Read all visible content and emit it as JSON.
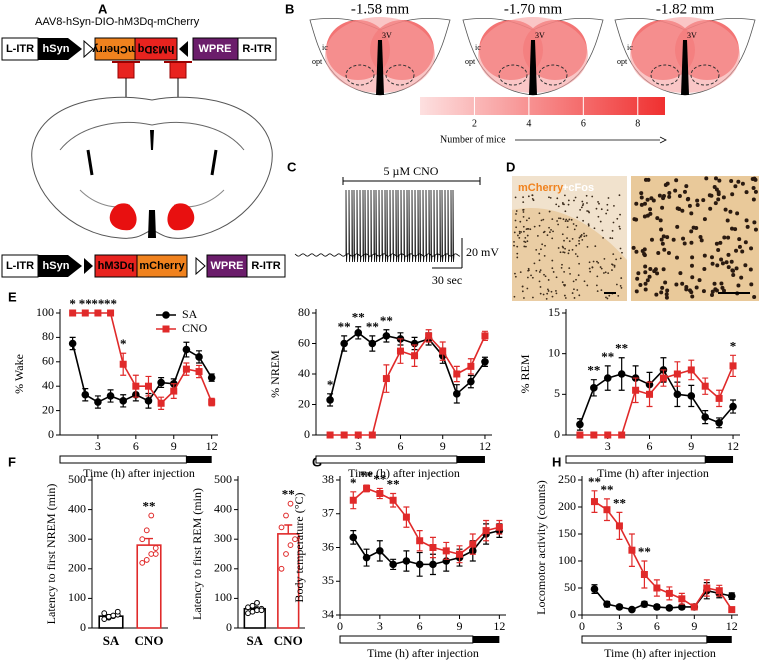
{
  "panel_labels": [
    "A",
    "B",
    "C",
    "D",
    "E",
    "F",
    "G",
    "H"
  ],
  "panel_a": {
    "vector": "AAV8-hSyn-DIO-hM3Dq-mCherry",
    "top_construct": [
      "L-ITR",
      "hSyn",
      "mCherry",
      "hM3Dq",
      "WPRE",
      "R-ITR"
    ],
    "bottom_construct": [
      "L-ITR",
      "hSyn",
      "hM3Dq",
      "mCherry",
      "WPRE",
      "R-ITR"
    ]
  },
  "panel_b": {
    "sections": [
      "-1.58 mm",
      "-1.70 mm",
      "-1.82 mm"
    ],
    "region_labels": [
      "ic",
      "3V",
      "opt"
    ],
    "colorbar_ticks": [
      2,
      4,
      6,
      8
    ],
    "colorbar_label": "Number of mice"
  },
  "panel_c": {
    "drug": "5 µM CNO",
    "scale_y": "20 mV",
    "scale_x": "30 sec"
  },
  "panel_d": {
    "stain_1": "mCherry",
    "stain_2": "+cFos"
  },
  "chart_data": [
    {
      "type": "line",
      "ylabel": "% Wake",
      "xlabel": "Time (h) after injection",
      "legend": "upper right",
      "x": [
        1,
        2,
        3,
        4,
        5,
        6,
        7,
        8,
        9,
        10,
        11,
        12
      ],
      "xlim": [
        0,
        12.5
      ],
      "xticks": [
        3,
        6,
        9,
        12
      ],
      "ylim": [
        0,
        100
      ],
      "yticks": [
        0,
        20,
        40,
        60,
        80,
        100
      ],
      "dark_period": [
        10,
        12
      ],
      "series": [
        {
          "name": "SA",
          "color": "#000000",
          "marker": "circle",
          "values": [
            75,
            33,
            27,
            32,
            28,
            33,
            28,
            43,
            42,
            70,
            64,
            47
          ],
          "errors": [
            5,
            5,
            5,
            5,
            5,
            5,
            6,
            4,
            4,
            6,
            5,
            3
          ]
        },
        {
          "name": "CNO",
          "color": "#e02a2a",
          "marker": "square",
          "values": [
            100,
            100,
            100,
            100,
            58,
            40,
            40,
            26,
            36,
            54,
            52,
            27
          ],
          "errors": [
            0,
            0,
            0,
            0,
            9,
            9,
            8,
            5,
            6,
            5,
            5,
            3
          ]
        }
      ],
      "annotations": [
        {
          "x": 1,
          "text": "*"
        },
        {
          "x": 2,
          "text": "**"
        },
        {
          "x": 3,
          "text": "**"
        },
        {
          "x": 4,
          "text": "**"
        },
        {
          "x": 5,
          "text": "*"
        }
      ]
    },
    {
      "type": "line",
      "ylabel": "% NREM",
      "xlabel": "Time (h) after injection",
      "x": [
        1,
        2,
        3,
        4,
        5,
        6,
        7,
        8,
        9,
        10,
        11,
        12
      ],
      "xlim": [
        0,
        12.5
      ],
      "xticks": [
        3,
        6,
        9,
        12
      ],
      "ylim": [
        0,
        80
      ],
      "yticks": [
        0,
        20,
        40,
        60,
        80
      ],
      "dark_period": [
        10,
        12
      ],
      "series": [
        {
          "color": "#000000",
          "marker": "circle",
          "values": [
            23,
            60,
            67,
            60,
            65,
            63,
            60,
            63,
            52,
            27,
            35,
            48
          ],
          "errors": [
            4,
            5,
            4,
            5,
            4,
            4,
            4,
            4,
            5,
            6,
            4,
            3
          ]
        },
        {
          "color": "#e02a2a",
          "marker": "square",
          "values": [
            0,
            0,
            0,
            0,
            37,
            55,
            52,
            65,
            55,
            40,
            45,
            65
          ],
          "errors": [
            0,
            0,
            0,
            0,
            9,
            8,
            7,
            4,
            6,
            5,
            5,
            3
          ]
        }
      ],
      "annotations": [
        {
          "x": 1,
          "text": "*"
        },
        {
          "x": 2,
          "text": "**"
        },
        {
          "x": 3,
          "text": "**"
        },
        {
          "x": 4,
          "text": "**"
        },
        {
          "x": 5,
          "text": "**"
        }
      ]
    },
    {
      "type": "line",
      "ylabel": "% REM",
      "xlabel": "Time (h) after injection",
      "x": [
        1,
        2,
        3,
        4,
        5,
        6,
        7,
        8,
        9,
        10,
        11,
        12
      ],
      "xlim": [
        0,
        12.5
      ],
      "xticks": [
        3,
        6,
        9,
        12
      ],
      "ylim": [
        0,
        15
      ],
      "yticks": [
        0,
        5,
        10,
        15
      ],
      "dark_period": [
        10,
        12
      ],
      "series": [
        {
          "color": "#000000",
          "marker": "circle",
          "values": [
            1.3,
            5.8,
            7,
            7.5,
            7,
            6.2,
            8,
            5,
            4.8,
            2.2,
            1.5,
            3.5
          ],
          "errors": [
            0.7,
            1,
            1.5,
            2,
            1.5,
            1.5,
            1.5,
            1.5,
            1.3,
            0.8,
            0.6,
            0.8
          ]
        },
        {
          "color": "#e02a2a",
          "marker": "square",
          "values": [
            0,
            0,
            0,
            0,
            5.5,
            5,
            7,
            7.5,
            8,
            6,
            4.5,
            8.5
          ],
          "errors": [
            0,
            0,
            0,
            0,
            1.5,
            1.5,
            1,
            1.5,
            1.2,
            1,
            1,
            1.3
          ]
        }
      ],
      "annotations": [
        {
          "x": 2,
          "text": "**"
        },
        {
          "x": 3,
          "text": "**"
        },
        {
          "x": 4,
          "text": "**"
        },
        {
          "x": 12,
          "text": "*"
        }
      ]
    },
    {
      "type": "bar",
      "ylabel": "Latency to first NREM (min)",
      "categories": [
        "SA",
        "CNO"
      ],
      "values": [
        40,
        280
      ],
      "errors": [
        5,
        22
      ],
      "colors": [
        "#000000",
        "#e02a2a"
      ],
      "points": [
        [
          30,
          35,
          40,
          45,
          50,
          38,
          42,
          55
        ],
        [
          220,
          230,
          250,
          270,
          300,
          330,
          380,
          250
        ]
      ],
      "ylim": [
        0,
        500
      ],
      "yticks": [
        0,
        100,
        200,
        300,
        400,
        500
      ],
      "annotations": [
        {
          "category": 1,
          "text": "**"
        }
      ]
    },
    {
      "type": "bar",
      "ylabel": "Latency to first REM (min)",
      "categories": [
        "SA",
        "CNO"
      ],
      "values": [
        65,
        318
      ],
      "errors": [
        6,
        30
      ],
      "colors": [
        "#000000",
        "#e02a2a"
      ],
      "points": [
        [
          50,
          55,
          60,
          65,
          70,
          75,
          85,
          60
        ],
        [
          200,
          250,
          280,
          300,
          340,
          380,
          420
        ]
      ],
      "ylim": [
        0,
        500
      ],
      "yticks": [
        0,
        100,
        200,
        300,
        400,
        500
      ],
      "annotations": [
        {
          "category": 1,
          "text": "**"
        }
      ]
    },
    {
      "type": "line",
      "ylabel": "Body temperature (°C)",
      "xlabel": "Time (h) after injection",
      "x": [
        1,
        2,
        3,
        4,
        5,
        6,
        7,
        8,
        9,
        10,
        11,
        12
      ],
      "xlim": [
        0,
        12.5
      ],
      "xticks": [
        0,
        3,
        6,
        9,
        12
      ],
      "ylim": [
        34,
        38
      ],
      "yticks": [
        34,
        35,
        36,
        37,
        38
      ],
      "dark_period": [
        10,
        12
      ],
      "series": [
        {
          "color": "#000000",
          "marker": "circle",
          "values": [
            36.3,
            35.7,
            35.9,
            35.5,
            35.6,
            35.5,
            35.5,
            35.6,
            35.7,
            35.9,
            36.4,
            36.5
          ],
          "errors": [
            0.2,
            0.25,
            0.3,
            0.15,
            0.3,
            0.35,
            0.3,
            0.3,
            0.25,
            0.3,
            0.3,
            0.2
          ]
        },
        {
          "color": "#e02a2a",
          "marker": "square",
          "values": [
            37.4,
            37.75,
            37.6,
            37.4,
            36.9,
            36.2,
            36,
            35.9,
            35.8,
            36.1,
            36.5,
            36.6
          ],
          "errors": [
            0.25,
            0.1,
            0.15,
            0.2,
            0.3,
            0.3,
            0.3,
            0.25,
            0.25,
            0.3,
            0.3,
            0.2
          ]
        }
      ],
      "annotations": [
        {
          "x": 1,
          "text": "*"
        },
        {
          "x": 2,
          "text": "**"
        },
        {
          "x": 3,
          "text": "**"
        },
        {
          "x": 4,
          "text": "**"
        }
      ]
    },
    {
      "type": "line",
      "ylabel": "Locomotor activity (counts)",
      "xlabel": "Time (h) after injection",
      "x": [
        1,
        2,
        3,
        4,
        5,
        6,
        7,
        8,
        9,
        10,
        11,
        12
      ],
      "xlim": [
        0,
        12.5
      ],
      "xticks": [
        0,
        3,
        6,
        9,
        12
      ],
      "ylim": [
        0,
        250
      ],
      "yticks": [
        0,
        50,
        100,
        150,
        200,
        250
      ],
      "dark_period": [
        10,
        12
      ],
      "series": [
        {
          "color": "#000000",
          "marker": "circle",
          "values": [
            48,
            20,
            15,
            10,
            20,
            15,
            13,
            15,
            15,
            45,
            40,
            35
          ],
          "errors": [
            8,
            5,
            4,
            3,
            5,
            4,
            3,
            4,
            4,
            15,
            8,
            6
          ]
        },
        {
          "color": "#e02a2a",
          "marker": "square",
          "values": [
            210,
            195,
            165,
            120,
            75,
            50,
            40,
            30,
            15,
            50,
            45,
            10
          ],
          "errors": [
            20,
            20,
            25,
            30,
            25,
            15,
            12,
            10,
            5,
            15,
            10,
            4
          ]
        }
      ],
      "annotations": [
        {
          "x": 1,
          "text": "**"
        },
        {
          "x": 2,
          "text": "**"
        },
        {
          "x": 3,
          "text": "**"
        },
        {
          "x": 5,
          "text": "**"
        }
      ]
    }
  ]
}
